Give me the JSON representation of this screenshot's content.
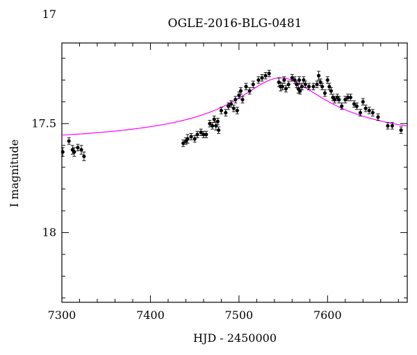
{
  "chart_data": {
    "type": "scatter",
    "title": "OGLE-2016-BLG-0481",
    "xlabel": "HJD - 2450000",
    "ylabel": "I magnitude",
    "xlim": [
      7300,
      7690
    ],
    "ylim": [
      18.32,
      17.13
    ],
    "y_inverted": true,
    "xticks": [
      7300,
      7400,
      7500,
      7600
    ],
    "yticks": [
      17,
      17.5,
      18
    ],
    "xtick_labels": [
      "7300",
      "7400",
      "7500",
      "7600"
    ],
    "ytick_labels": [
      "17",
      "17.5",
      "18"
    ],
    "grid": false,
    "colors": {
      "data": "#000000",
      "model": "#ff00ff"
    },
    "series": [
      {
        "type": "scatter_errorbar",
        "points": [
          [
            7301,
            17.63,
            0.02
          ],
          [
            7308,
            17.58,
            0.015
          ],
          [
            7312,
            17.62,
            0.02
          ],
          [
            7314,
            17.63,
            0.02
          ],
          [
            7318,
            17.61,
            0.015
          ],
          [
            7322,
            17.62,
            0.02
          ],
          [
            7325,
            17.65,
            0.02
          ],
          [
            7437,
            17.59,
            0.015
          ],
          [
            7440,
            17.58,
            0.015
          ],
          [
            7442,
            17.57,
            0.02
          ],
          [
            7446,
            17.56,
            0.015
          ],
          [
            7450,
            17.57,
            0.015
          ],
          [
            7453,
            17.55,
            0.015
          ],
          [
            7457,
            17.54,
            0.015
          ],
          [
            7460,
            17.55,
            0.015
          ],
          [
            7463,
            17.55,
            0.015
          ],
          [
            7467,
            17.5,
            0.015
          ],
          [
            7470,
            17.51,
            0.015
          ],
          [
            7472,
            17.48,
            0.015
          ],
          [
            7474,
            17.51,
            0.02
          ],
          [
            7476,
            17.49,
            0.015
          ],
          [
            7477,
            17.53,
            0.015
          ],
          [
            7480,
            17.44,
            0.015
          ],
          [
            7485,
            17.45,
            0.015
          ],
          [
            7488,
            17.42,
            0.015
          ],
          [
            7491,
            17.41,
            0.015
          ],
          [
            7494,
            17.43,
            0.015
          ],
          [
            7496,
            17.39,
            0.015
          ],
          [
            7498,
            17.44,
            0.015
          ],
          [
            7500,
            17.37,
            0.015
          ],
          [
            7502,
            17.35,
            0.015
          ],
          [
            7504,
            17.39,
            0.015
          ],
          [
            7508,
            17.33,
            0.015
          ],
          [
            7512,
            17.35,
            0.015
          ],
          [
            7516,
            17.32,
            0.015
          ],
          [
            7522,
            17.3,
            0.015
          ],
          [
            7526,
            17.29,
            0.015
          ],
          [
            7530,
            17.28,
            0.015
          ],
          [
            7534,
            17.27,
            0.015
          ],
          [
            7545,
            17.31,
            0.02
          ],
          [
            7547,
            17.33,
            0.02
          ],
          [
            7549,
            17.33,
            0.015
          ],
          [
            7551,
            17.3,
            0.015
          ],
          [
            7553,
            17.34,
            0.015
          ],
          [
            7556,
            17.32,
            0.015
          ],
          [
            7560,
            17.29,
            0.015
          ],
          [
            7563,
            17.3,
            0.015
          ],
          [
            7565,
            17.32,
            0.015
          ],
          [
            7567,
            17.34,
            0.02
          ],
          [
            7568,
            17.3,
            0.015
          ],
          [
            7569,
            17.35,
            0.015
          ],
          [
            7571,
            17.33,
            0.015
          ],
          [
            7573,
            17.3,
            0.015
          ],
          [
            7575,
            17.32,
            0.015
          ],
          [
            7579,
            17.33,
            0.015
          ],
          [
            7584,
            17.33,
            0.015
          ],
          [
            7588,
            17.32,
            0.015
          ],
          [
            7590,
            17.28,
            0.02
          ],
          [
            7592,
            17.31,
            0.015
          ],
          [
            7594,
            17.33,
            0.015
          ],
          [
            7597,
            17.36,
            0.015
          ],
          [
            7600,
            17.3,
            0.015
          ],
          [
            7602,
            17.33,
            0.015
          ],
          [
            7604,
            17.35,
            0.015
          ],
          [
            7606,
            17.38,
            0.015
          ],
          [
            7608,
            17.39,
            0.015
          ],
          [
            7611,
            17.38,
            0.015
          ],
          [
            7613,
            17.39,
            0.015
          ],
          [
            7616,
            17.42,
            0.015
          ],
          [
            7620,
            17.39,
            0.015
          ],
          [
            7623,
            17.38,
            0.015
          ],
          [
            7626,
            17.38,
            0.015
          ],
          [
            7630,
            17.41,
            0.015
          ],
          [
            7633,
            17.42,
            0.015
          ],
          [
            7637,
            17.45,
            0.015
          ],
          [
            7640,
            17.4,
            0.015
          ],
          [
            7643,
            17.43,
            0.015
          ],
          [
            7647,
            17.44,
            0.015
          ],
          [
            7651,
            17.45,
            0.015
          ],
          [
            7657,
            17.47,
            0.015
          ],
          [
            7668,
            17.51,
            0.015
          ],
          [
            7673,
            17.51,
            0.015
          ],
          [
            7683,
            17.53,
            0.015
          ]
        ]
      },
      {
        "type": "model_line",
        "model": {
          "t0": 7547,
          "baseline": 17.615,
          "peak_depth": 0.325,
          "width": 48,
          "points": 240
        }
      }
    ]
  }
}
